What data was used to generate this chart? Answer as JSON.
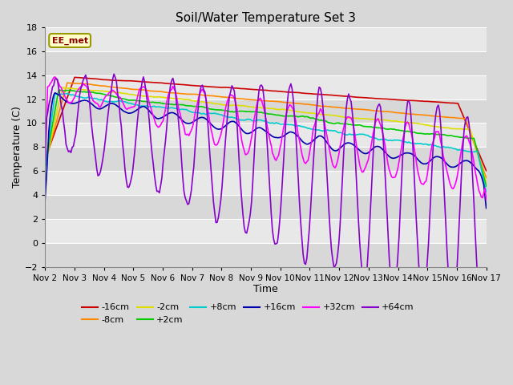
{
  "title": "Soil/Water Temperature Set 3",
  "xlabel": "Time",
  "ylabel": "Temperature (C)",
  "ylim": [
    -2,
    18
  ],
  "xlim": [
    0,
    15
  ],
  "x_tick_labels": [
    "Nov 2",
    "Nov 3",
    "Nov 4",
    "Nov 5",
    "Nov 6",
    "Nov 7",
    "Nov 8",
    "Nov 9",
    "Nov 10",
    "Nov 11",
    "Nov 12",
    "Nov 13",
    "Nov 14",
    "Nov 15",
    "Nov 16",
    "Nov 17"
  ],
  "yticks": [
    -2,
    0,
    2,
    4,
    6,
    8,
    10,
    12,
    14,
    16,
    18
  ],
  "annotation_text": "EE_met",
  "bg_color": "#d8d8d8",
  "plot_bg_color": "#e8e8e8",
  "alt_band_color": "#d8d8d8",
  "series": [
    {
      "label": "-16cm",
      "color": "#cc0000",
      "lw": 1.2
    },
    {
      "label": "-8cm",
      "color": "#ff8800",
      "lw": 1.2
    },
    {
      "label": "-2cm",
      "color": "#dddd00",
      "lw": 1.2
    },
    {
      "label": "+2cm",
      "color": "#00cc00",
      "lw": 1.2
    },
    {
      "label": "+8cm",
      "color": "#00cccc",
      "lw": 1.2
    },
    {
      "label": "+16cm",
      "color": "#0000aa",
      "lw": 1.2
    },
    {
      "label": "+32cm",
      "color": "#ff00ff",
      "lw": 1.2
    },
    {
      "label": "+64cm",
      "color": "#8800cc",
      "lw": 1.2
    }
  ],
  "grid_color": "#ffffff",
  "grid_lw": 0.8,
  "figsize": [
    6.4,
    4.8
  ],
  "dpi": 100
}
